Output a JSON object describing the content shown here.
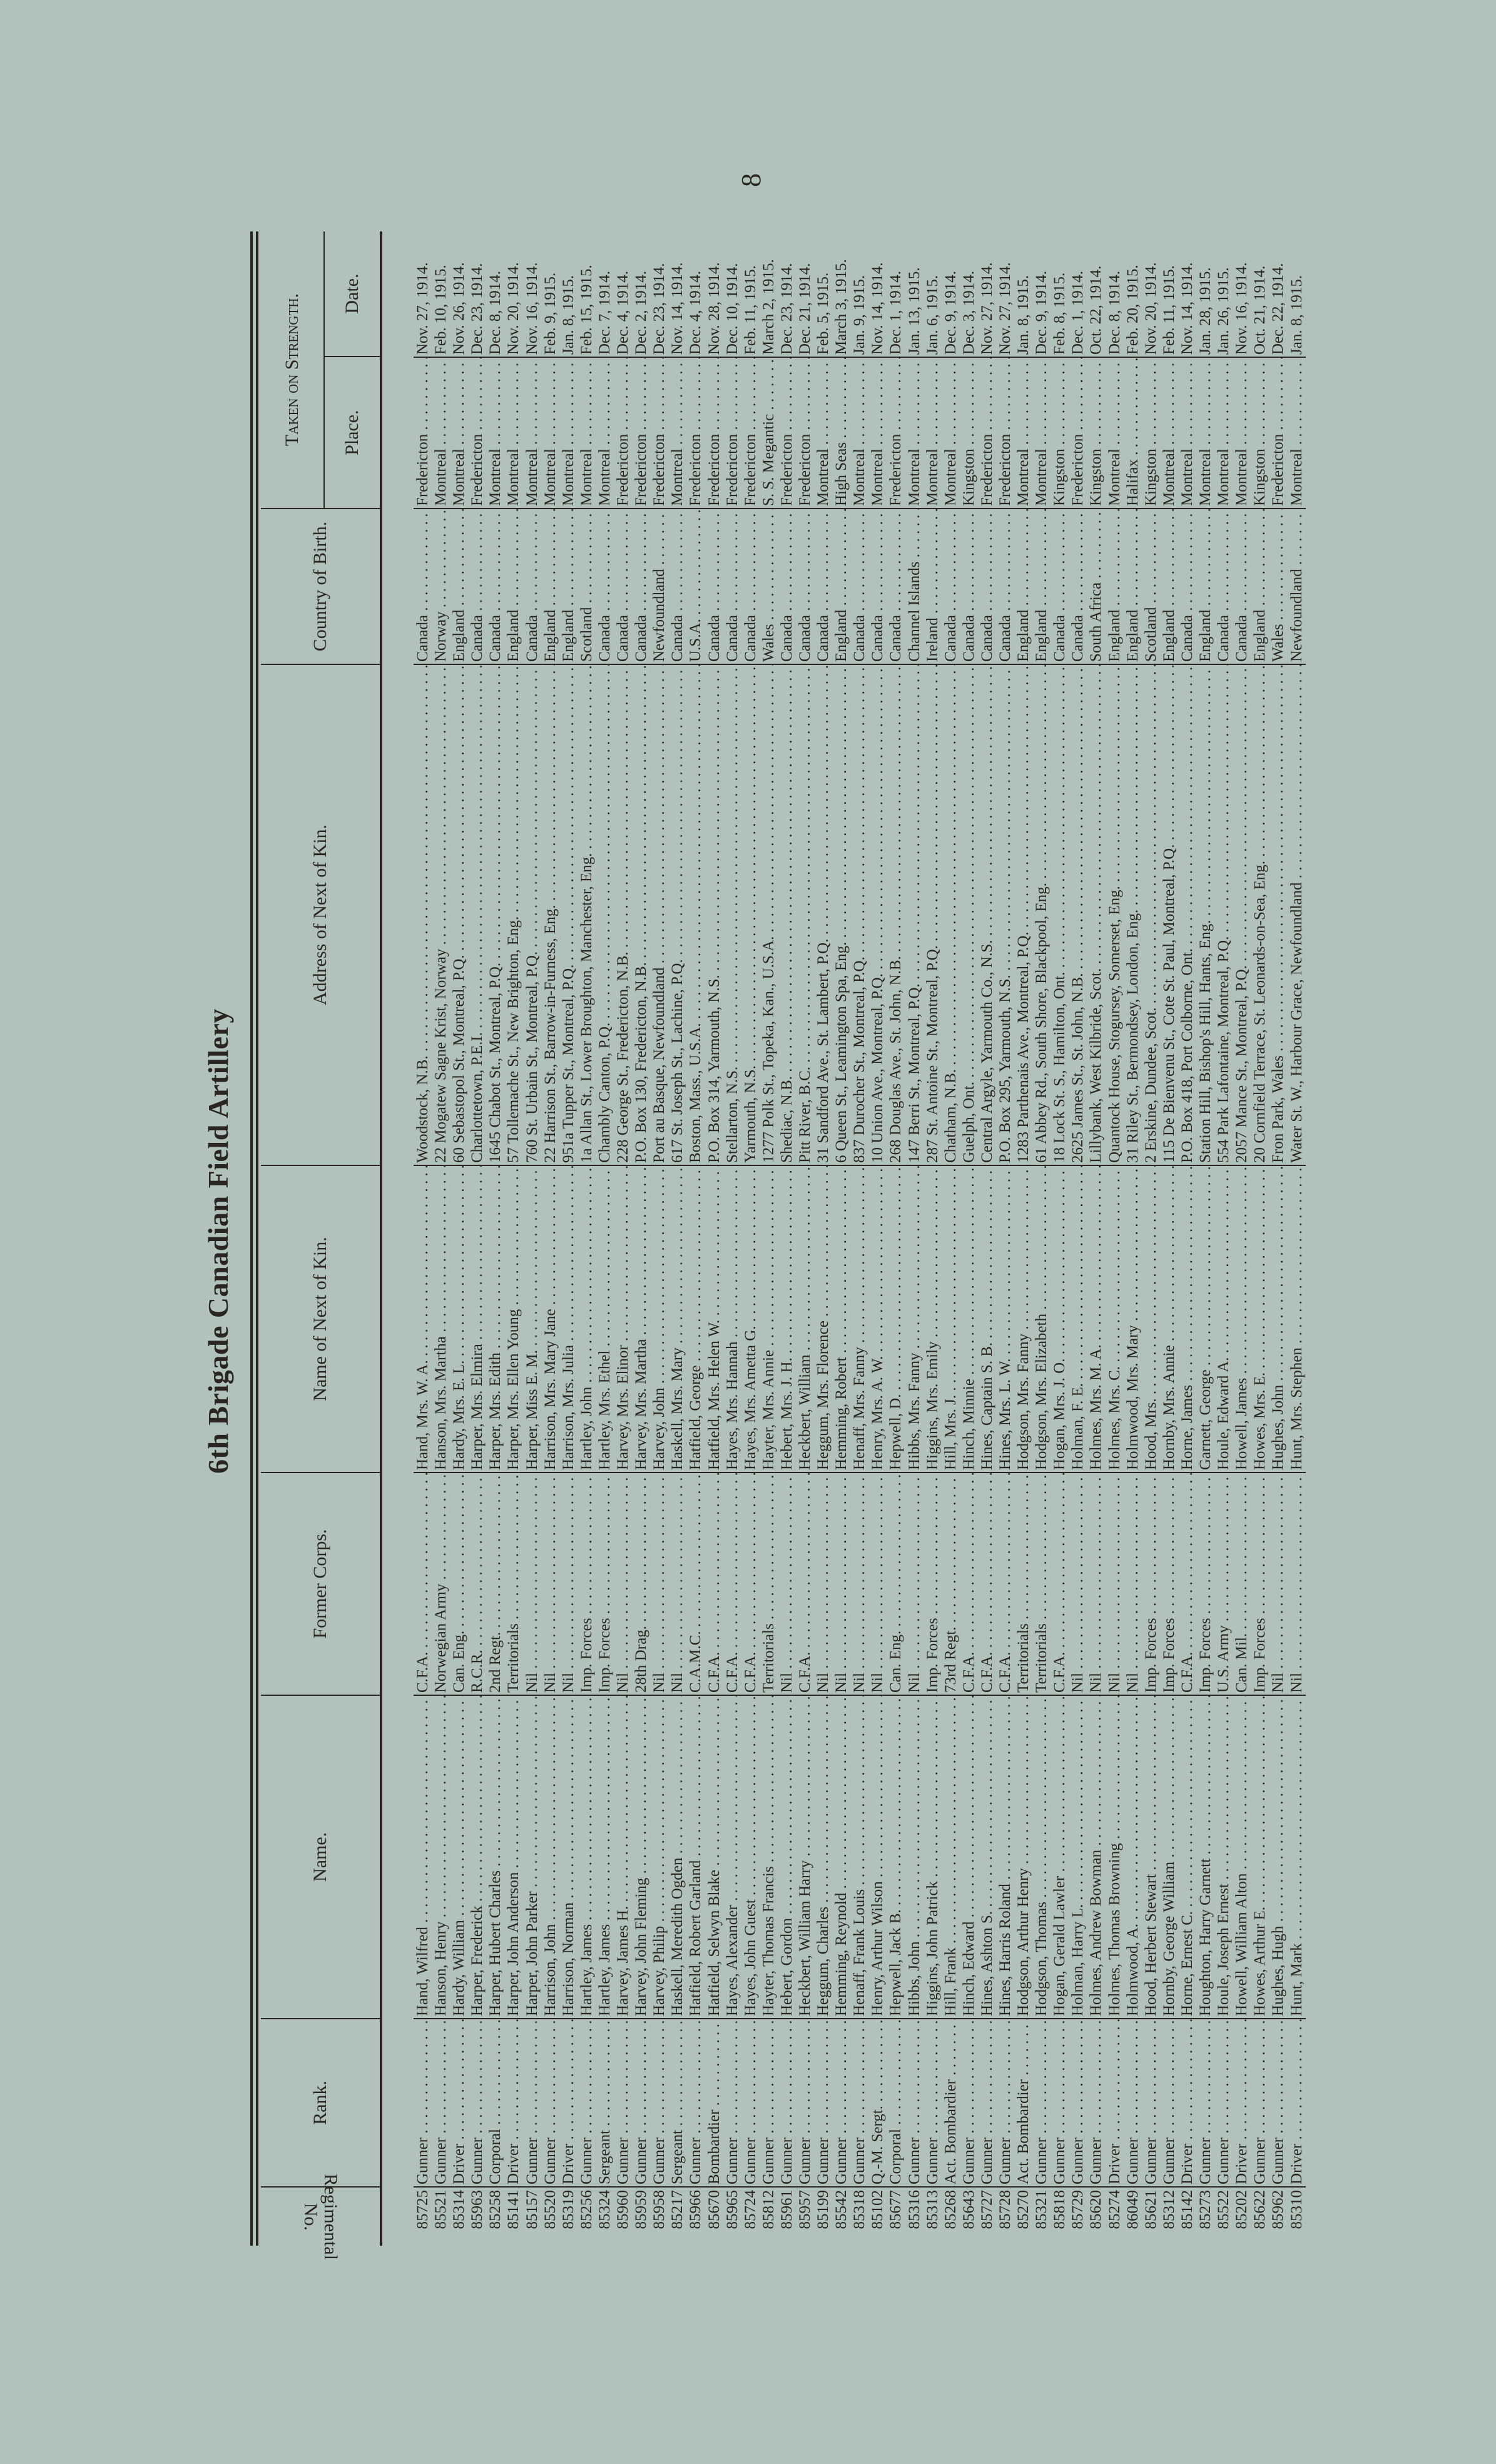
{
  "page_number": "8",
  "title": "6th Brigade Canadian Field Artillery",
  "headers": {
    "regimental_no": "Regimental No.",
    "rank": "Rank.",
    "name": "Name.",
    "former_corps": "Former Corps.",
    "next_of_kin": "Name of Next of Kin.",
    "address": "Address of Next of Kin.",
    "country": "Country of Birth.",
    "taken_on_strength": "Taken on Strength.",
    "place": "Place.",
    "date": "Date."
  },
  "colors": {
    "paper": "#b0c2ba",
    "ink": "#2a2522"
  },
  "rows": [
    [
      "85725",
      "Gunner",
      "Hand, Wilfred",
      "C.F.A.",
      "Hand, Mrs. W. A.",
      "Woodstock, N.B.",
      "Canada",
      "Fredericton",
      "Nov. 27, 1914."
    ],
    [
      "85521",
      "Gunner",
      "Hanson, Henry",
      "Norwegian Army",
      "Hanson, Mrs. Martha",
      "22 Mogatew Sagne Krist, Norway",
      "Norway",
      "Montreal",
      "Feb. 10, 1915."
    ],
    [
      "85314",
      "Driver",
      "Hardy, William",
      "Can. Eng.",
      "Hardy, Mrs. E. L.",
      "60 Sebastopol St., Montreal, P.Q.",
      "England",
      "Montreal",
      "Nov. 26, 1914."
    ],
    [
      "85963",
      "Gunner",
      "Harper, Frederick",
      "R.C.R.",
      "Harper, Mrs. Elmira",
      "Charlottetown, P.E.I.",
      "Canada",
      "Fredericton",
      "Dec. 23, 1914."
    ],
    [
      "85258",
      "Corporal",
      "Harper, Hubert Charles",
      "2nd Regt.",
      "Harper, Mrs. Edith",
      "1645 Chabot St., Montreal, P.Q.",
      "Canada",
      "Montreal",
      "Dec. 8, 1914."
    ],
    [
      "85141",
      "Driver",
      "Harper, John Anderson",
      "Territorials",
      "Harper, Mrs. Ellen Young",
      "57 Tollemache St., New Brighton, Eng.",
      "England",
      "Montreal",
      "Nov. 20, 1914."
    ],
    [
      "85157",
      "Gunner",
      "Harper, John Parker",
      "Nil",
      "Harper, Miss E. M.",
      "760 St. Urbain St., Montreal, P.Q.",
      "Canada",
      "Montreal",
      "Nov. 16, 1914."
    ],
    [
      "85520",
      "Gunner",
      "Harrison, John",
      "Nil",
      "Harrison, Mrs. Mary Jane",
      "22 Harrison St., Barrow-in-Furness, Eng.",
      "England",
      "Montreal",
      "Feb. 9, 1915."
    ],
    [
      "85319",
      "Driver",
      "Harrison, Norman",
      "Nil",
      "Harrison, Mrs. Julia",
      "951a Tupper St., Montreal, P.Q.",
      "England",
      "Montreal",
      "Jan. 8, 1915."
    ],
    [
      "85256",
      "Gunner",
      "Hartley, James",
      "Imp. Forces",
      "Hartley, John",
      "1a Allan St., Lower Broughton, Manchester, Eng.",
      "Scotland",
      "Montreal",
      "Feb. 15, 1915."
    ],
    [
      "85324",
      "Sergeant",
      "Hartley, James",
      "Imp. Forces",
      "Hartley, Mrs. Ethel",
      "Chambly Canton, P.Q.",
      "Canada",
      "Montreal",
      "Dec. 7, 1914."
    ],
    [
      "85960",
      "Gunner",
      "Harvey, James H.",
      "Nil",
      "Harvey, Mrs. Elinor",
      "228 George St., Fredericton, N.B.",
      "Canada",
      "Fredericton",
      "Dec. 4, 1914."
    ],
    [
      "85959",
      "Gunner",
      "Harvey, John Fleming",
      "28th Drag.",
      "Harvey, Mrs. Martha",
      "P.O. Box 130, Fredericton, N.B.",
      "Canada",
      "Fredericton",
      "Dec. 2, 1914."
    ],
    [
      "85958",
      "Gunner",
      "Harvey, Philip",
      "Nil",
      "Harvey, John",
      "Port au Basque, Newfoundland",
      "Newfoundland",
      "Fredericton",
      "Dec. 23, 1914."
    ],
    [
      "85217",
      "Sergeant",
      "Haskell, Meredith Ogden",
      "Nil",
      "Haskell, Mrs. Mary",
      "617 St. Joseph St., Lachine, P.Q.",
      "Canada",
      "Montreal",
      "Nov. 14, 1914."
    ],
    [
      "85966",
      "Gunner",
      "Hatfield, Robert Garland",
      "C.A.M.C.",
      "Hatfield, George",
      "Boston, Mass., U.S.A.",
      "U.S.A.",
      "Fredericton",
      "Dec. 4, 1914."
    ],
    [
      "85670",
      "Bombardier",
      "Hatfield, Selwyn Blake",
      "C.F.A.",
      "Hatfield, Mrs. Helen W.",
      "P.O. Box 314, Yarmouth, N.S.",
      "Canada",
      "Fredericton",
      "Nov. 28, 1914."
    ],
    [
      "85965",
      "Gunner",
      "Hayes, Alexander",
      "C.F.A.",
      "Hayes, Mrs. Hannah",
      "Stellarton, N.S.",
      "Canada",
      "Fredericton",
      "Dec. 10, 1914."
    ],
    [
      "85724",
      "Gunner",
      "Hayes, John Guest",
      "C.F.A.",
      "Hayes, Mrs. Ametta G.",
      "Yarmouth, N.S.",
      "Canada",
      "Fredericton",
      "Feb. 11, 1915."
    ],
    [
      "85812",
      "Gunner",
      "Hayter, Thomas Francis",
      "Territorials",
      "Hayter, Mrs. Annie",
      "1277 Polk St., Topeka, Kan., U.S.A.",
      "Wales",
      "S. S. Megantic",
      "March 2, 1915."
    ],
    [
      "85961",
      "Gunner",
      "Hebert, Gordon",
      "Nil",
      "Hebert, Mrs. J. H.",
      "Shediac, N.B.",
      "Canada",
      "Fredericton",
      "Dec. 23, 1914."
    ],
    [
      "85957",
      "Gunner",
      "Heckbert, William Harry",
      "C.F.A.",
      "Heckbert, William",
      "Pitt River, B.C.",
      "Canada",
      "Fredericton",
      "Dec. 21, 1914."
    ],
    [
      "85199",
      "Gunner",
      "Heggum, Charles",
      "Nil",
      "Heggum, Mrs. Florence",
      "31 Sandford Ave., St. Lambert, P.Q.",
      "Canada",
      "Montreal",
      "Feb. 5, 1915."
    ],
    [
      "85542",
      "Gunner",
      "Hemming, Reynold",
      "Nil",
      "Hemming, Robert",
      "6 Queen St., Leamington Spa, Eng.",
      "England",
      "High Seas",
      "March 3, 1915."
    ],
    [
      "85318",
      "Gunner",
      "Henaff, Frank Louis",
      "Nil",
      "Henaff, Mrs. Fanny",
      "837 Durocher St., Montreal, P.Q.",
      "Canada",
      "Montreal",
      "Jan. 9, 1915."
    ],
    [
      "85102",
      "Q.-M. Sergt.",
      "Henry, Arthur Wilson",
      "Nil",
      "Henry, Mrs. A. W.",
      "10 Union Ave., Montreal, P.Q.",
      "Canada",
      "Montreal",
      "Nov. 14, 1914."
    ],
    [
      "85677",
      "Corporal",
      "Hepwell, Jack B.",
      "Can. Eng.",
      "Hepwell, D.",
      "268 Douglas Ave., St. John, N.B.",
      "Canada",
      "Fredericton",
      "Dec. 1, 1914."
    ],
    [
      "85316",
      "Gunner",
      "Hibbs, John",
      "Nil",
      "Hibbs, Mrs. Fanny",
      "147 Berri St., Montreal, P.Q.",
      "Channel Islands",
      "Montreal",
      "Jan. 13, 1915."
    ],
    [
      "85313",
      "Gunner",
      "Higgins, John Patrick",
      "Imp. Forces",
      "Higgins, Mrs. Emily",
      "287 St. Antoine St., Montreal, P.Q.",
      "Ireland",
      "Montreal",
      "Jan. 6, 1915."
    ],
    [
      "85268",
      "Act. Bombardier",
      "Hill, Frank",
      "73rd Regt.",
      "Hill, Mrs. J.",
      "Chatham, N.B.",
      "Canada",
      "Montreal",
      "Dec. 9, 1914."
    ],
    [
      "85643",
      "Gunner",
      "Hinch, Edward",
      "C.F.A.",
      "Hinch, Minnie",
      "Guelph, Ont.",
      "Canada",
      "Kingston",
      "Dec. 3, 1914."
    ],
    [
      "85727",
      "Gunner",
      "Hines, Ashton S.",
      "C.F.A.",
      "Hines, Captain S. B.",
      "Central Argyle, Yarmouth Co., N.S.",
      "Canada",
      "Fredericton",
      "Nov. 27, 1914."
    ],
    [
      "85728",
      "Gunner",
      "Hines, Harris Roland",
      "C.F.A.",
      "Hines, Mrs. L. W.",
      "P.O. Box 295, Yarmouth, N.S.",
      "Canada",
      "Fredericton",
      "Nov. 27, 1914."
    ],
    [
      "85270",
      "Act. Bombardier",
      "Hodgson, Arthur Henry",
      "Territorials",
      "Hodgson, Mrs. Fanny",
      "1283 Parthenais Ave., Montreal, P.Q.",
      "England",
      "Montreal",
      "Jan. 8, 1915."
    ],
    [
      "85321",
      "Gunner",
      "Hodgson, Thomas",
      "Territorials",
      "Hodgson, Mrs. Elizabeth",
      "61 Abbey Rd., South Shore, Blackpool, Eng.",
      "England",
      "Montreal",
      "Dec. 9, 1914."
    ],
    [
      "85818",
      "Gunner",
      "Hogan, Gerald Lawler",
      "C.F.A.",
      "Hogan, Mrs. J. O.",
      "18 Lock St. S., Hamilton, Ont.",
      "Canada",
      "Kingston",
      "Feb. 8, 1915."
    ],
    [
      "85729",
      "Gunner",
      "Holman, Harry L.",
      "Nil",
      "Holman, F. E.",
      "2625 James St., St. John, N.B.",
      "Canada",
      "Fredericton",
      "Dec. 1, 1914."
    ],
    [
      "85620",
      "Gunner",
      "Holmes, Andrew Bowman",
      "Nil",
      "Holmes, Mrs. M. A.",
      "Lillybank, West Kilbride, Scot.",
      "South Africa",
      "Kingston",
      "Oct. 22, 1914."
    ],
    [
      "85274",
      "Driver",
      "Holmes, Thomas Browning",
      "Nil",
      "Holmes, Mrs. C.",
      "Quantock House, Stogursey, Somerset, Eng.",
      "England",
      "Montreal",
      "Dec. 8, 1914."
    ],
    [
      "86049",
      "Gunner",
      "Holmwood, A.",
      "Nil",
      "Holmwood, Mrs. Mary",
      "31 Riley St., Bermondsey, London, Eng.",
      "England",
      "Halifax",
      "Feb. 20, 1915."
    ],
    [
      "85621",
      "Gunner",
      "Hood, Herbert Stewart",
      "Imp. Forces",
      "Hood, Mrs.",
      "2 Erskine, Dundee, Scot.",
      "Scotland",
      "Kingston",
      "Nov. 20, 1914."
    ],
    [
      "85312",
      "Gunner",
      "Hornby, George William",
      "Imp. Forces",
      "Hornby, Mrs. Annie",
      "115 De Bienvenu St., Cote St. Paul, Montreal, P.Q.",
      "England",
      "Montreal",
      "Feb. 11, 1915."
    ],
    [
      "85142",
      "Driver",
      "Horne, Ernest C.",
      "C.F.A.",
      "Horne, James",
      "P.O. Box 418, Port Colborne, Ont.",
      "Canada",
      "Montreal",
      "Nov. 14, 1914."
    ],
    [
      "85273",
      "Gunner",
      "Houghton, Harry Garnett",
      "Imp. Forces",
      "Garnett, George",
      "Station Hill, Bishop's Hill, Hants, Eng.",
      "England",
      "Montreal",
      "Jan. 28, 1915."
    ],
    [
      "85522",
      "Gunner",
      "Houle, Joseph Ernest",
      "U.S. Army",
      "Houle, Edward A.",
      "554 Park Lafontaine, Montreal, P.Q.",
      "Canada",
      "Montreal",
      "Jan. 26, 1915."
    ],
    [
      "85202",
      "Driver",
      "Howell, William Alton",
      "Can. Mil.",
      "Howell, James",
      "2057 Mance St., Montreal, P.Q.",
      "Canada",
      "Montreal",
      "Nov. 16, 1914."
    ],
    [
      "85622",
      "Gunner",
      "Howes, Arthur E.",
      "Imp. Forces",
      "Howes, Mrs. E.",
      "20 Cornfield Terrace, St. Leonards-on-Sea, Eng.",
      "England",
      "Kingston",
      "Oct. 21, 1914."
    ],
    [
      "85962",
      "Gunner",
      "Hughes, Hugh",
      "Nil",
      "Hughes, John",
      "Fron Park, Wales",
      "Wales",
      "Fredericton",
      "Dec. 22, 1914."
    ],
    [
      "85310",
      "Driver",
      "Hunt, Mark",
      "Nil",
      "Hunt, Mrs. Stephen",
      "Water St. W., Harbour Grace, Newfoundland",
      "Newfoundland",
      "Montreal",
      "Jan. 8, 1915."
    ]
  ]
}
